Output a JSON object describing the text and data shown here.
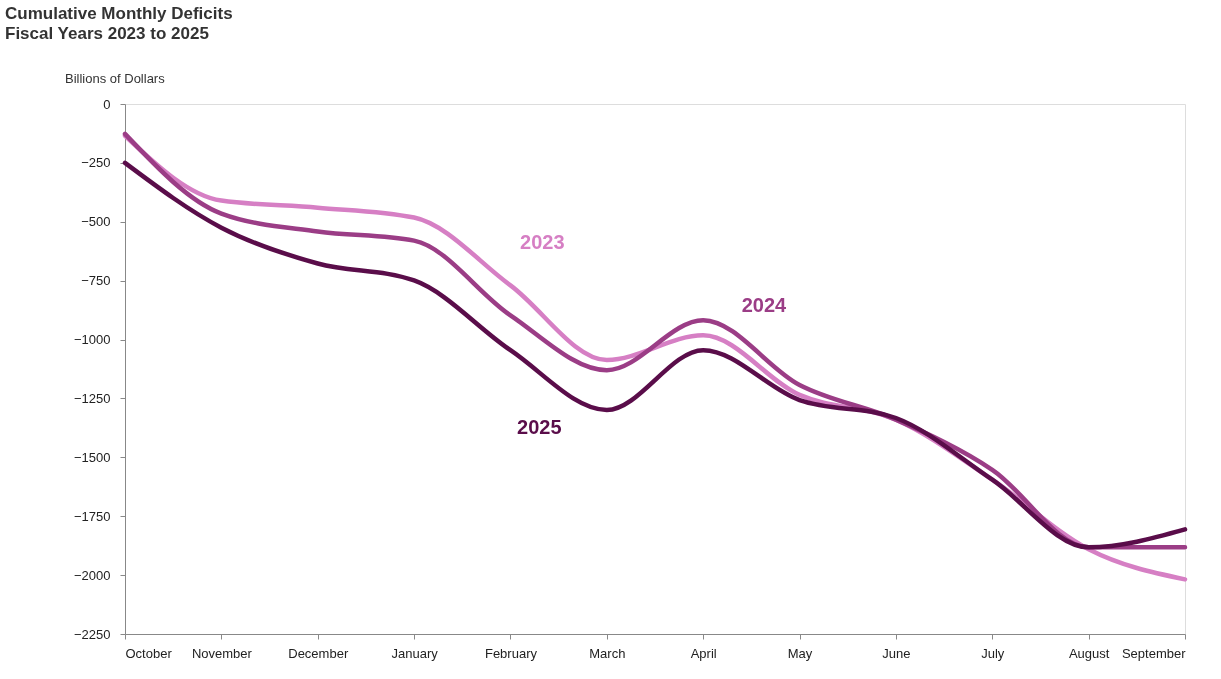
{
  "chart_data": {
    "type": "line",
    "title": "Cumulative Monthly Deficits",
    "subtitle": "Fiscal Years 2023 to 2025",
    "ylabel": "Billions of Dollars",
    "categories": [
      "October",
      "November",
      "December",
      "January",
      "February",
      "March",
      "April",
      "May",
      "June",
      "July",
      "August",
      "September"
    ],
    "series": [
      {
        "name": "2023",
        "color": "#d67fc4",
        "values": [
          -135,
          -410,
          -440,
          -482,
          -770,
          -1087,
          -982,
          -1235,
          -1340,
          -1595,
          -1890,
          -2018
        ]
      },
      {
        "name": "2024",
        "color": "#9b3d86",
        "values": [
          -127,
          -465,
          -541,
          -580,
          -897,
          -1130,
          -918,
          -1193,
          -1340,
          -1553,
          -1882,
          -1882
        ]
      },
      {
        "name": "2025",
        "color": "#5a0d4a",
        "values": [
          -250,
          -525,
          -677,
          -749,
          -1045,
          -1299,
          -1045,
          -1257,
          -1333,
          -1595,
          -1882,
          -1806
        ]
      }
    ],
    "ylim": [
      -2250,
      0
    ],
    "yticks": [
      0,
      -250,
      -500,
      -750,
      -1000,
      -1250,
      -1500,
      -1750,
      -2000,
      -2250
    ],
    "grid": false,
    "legend": false,
    "marker": "none",
    "line_style": "solid"
  }
}
